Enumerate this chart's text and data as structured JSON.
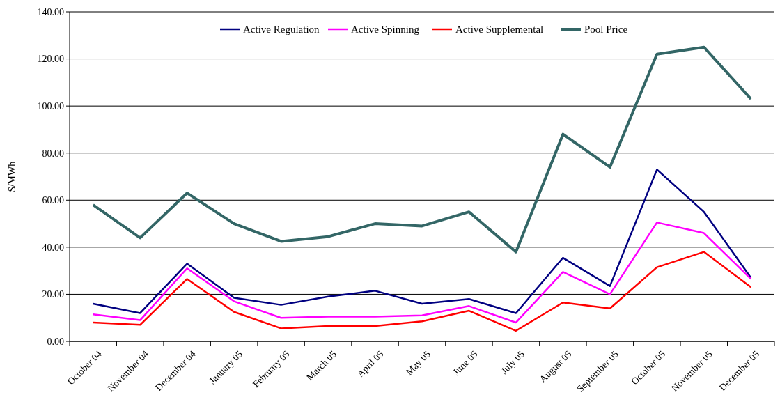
{
  "chart_data": {
    "type": "line",
    "ylabel": "$/MWh",
    "categories": [
      "October 04",
      "November 04",
      "December 04",
      "January 05",
      "February 05",
      "March 05",
      "April 05",
      "May  05",
      "June 05",
      "July 05",
      "August 05",
      "September 05",
      "October 05",
      "November 05",
      "December 05"
    ],
    "series": [
      {
        "name": "Active Regulation",
        "color": "#000080",
        "values": [
          16,
          12,
          33,
          18.5,
          15.5,
          19,
          21.5,
          16,
          18,
          12,
          35.5,
          23.5,
          73,
          55,
          27
        ]
      },
      {
        "name": "Active Spinning",
        "color": "#ff00ff",
        "values": [
          11.5,
          9,
          31,
          17,
          10,
          10.5,
          10.5,
          11,
          15,
          8,
          29.5,
          20,
          50.5,
          46,
          26.5
        ]
      },
      {
        "name": "Active Supplemental",
        "color": "#ff0000",
        "values": [
          8,
          7,
          26.5,
          12.5,
          5.5,
          6.5,
          6.5,
          8.5,
          13,
          4.5,
          16.5,
          14,
          31.5,
          38,
          23
        ]
      },
      {
        "name": "Pool Price",
        "color": "#336666",
        "values": [
          58,
          44,
          63,
          50,
          42.5,
          44.5,
          50,
          49,
          55,
          38,
          88,
          74,
          122,
          125,
          103
        ]
      }
    ],
    "ylim": [
      0,
      140
    ],
    "yticks": [
      {
        "value": 0,
        "label": "0.00"
      },
      {
        "value": 20,
        "label": "20.00"
      },
      {
        "value": 40,
        "label": "40.00"
      },
      {
        "value": 60,
        "label": "60.00"
      },
      {
        "value": 80,
        "label": "80.00"
      },
      {
        "value": 100,
        "label": "100.00"
      },
      {
        "value": 120,
        "label": "120.00"
      },
      {
        "value": 140,
        "label": "140.00"
      }
    ],
    "grid": "y",
    "legend": "top",
    "marker": "none",
    "line_style": "solid"
  }
}
